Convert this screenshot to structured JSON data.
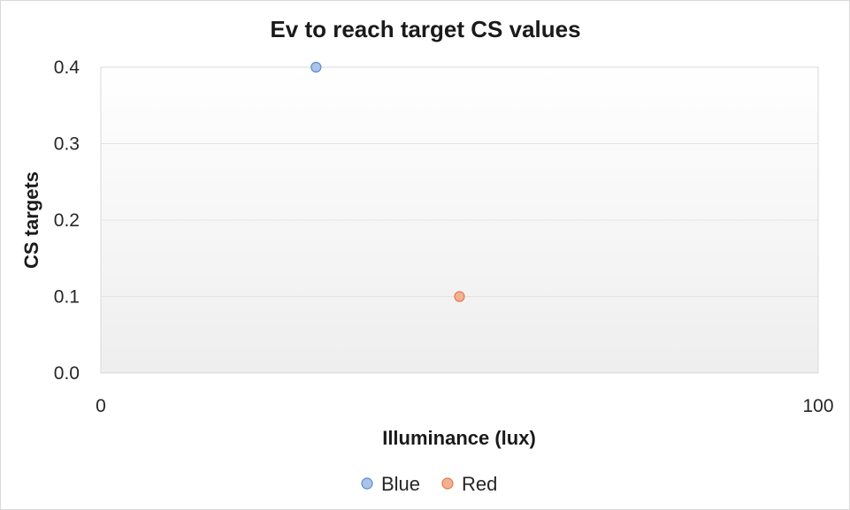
{
  "chart_data": {
    "type": "scatter",
    "title": "Ev to reach target CS values",
    "xlabel": "Illuminance (lux)",
    "ylabel": "CS targets",
    "xlim": [
      0,
      100
    ],
    "ylim": [
      0,
      0.4
    ],
    "x_ticks": [
      "0",
      "100"
    ],
    "y_ticks": [
      "0.0",
      "0.1",
      "0.2",
      "0.3",
      "0.4"
    ],
    "grid": true,
    "legend_position": "bottom",
    "series": [
      {
        "name": "Blue",
        "color": "#a9c4e6",
        "stroke": "#5b8bd0",
        "points": [
          {
            "x": 30,
            "y": 0.4
          }
        ]
      },
      {
        "name": "Red",
        "color": "#f4b093",
        "stroke": "#e27a4e",
        "points": [
          {
            "x": 50,
            "y": 0.1
          }
        ]
      }
    ]
  }
}
